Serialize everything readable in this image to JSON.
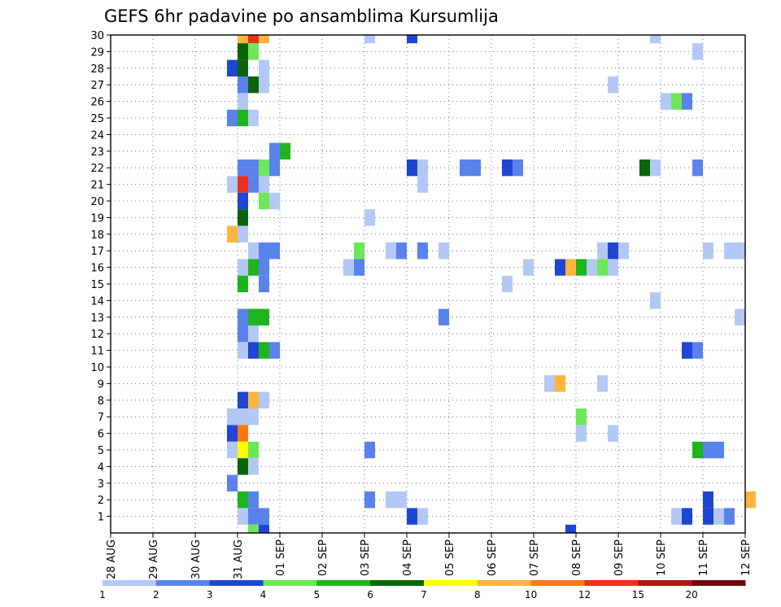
{
  "chart_data": {
    "type": "heatmap",
    "title": "GEFS 6hr padavine po ansamblima Kursumlija",
    "x_tick_labels": [
      "28 AUG",
      "29 AUG",
      "30 AUG",
      "31 AUG",
      "01 SEP",
      "02 SEP",
      "03 SEP",
      "04 SEP",
      "05 SEP",
      "06 SEP",
      "07 SEP",
      "08 SEP",
      "09 SEP",
      "10 SEP",
      "11 SEP",
      "12 SEP"
    ],
    "y_tick_labels": [
      "1",
      "2",
      "3",
      "4",
      "5",
      "6",
      "7",
      "8",
      "9",
      "10",
      "11",
      "12",
      "13",
      "14",
      "15",
      "16",
      "17",
      "18",
      "19",
      "20",
      "21",
      "22",
      "23",
      "24",
      "25",
      "26",
      "27",
      "28",
      "29",
      "30"
    ],
    "x_range_days": [
      0,
      15
    ],
    "y_range": [
      0,
      30
    ],
    "grid": true,
    "legend": {
      "position": "bottom",
      "boundaries": [
        "1",
        "2",
        "3",
        "4",
        "5",
        "6",
        "7",
        "8",
        "10",
        "12",
        "15",
        "20"
      ],
      "colors": [
        "#b4c8f5",
        "#5a82eb",
        "#1e46d2",
        "#6ee65a",
        "#1eb41e",
        "#0a640a",
        "#ffff00",
        "#ffb43c",
        "#ff7814",
        "#e6321e",
        "#b41414",
        "#6e0a0a"
      ]
    },
    "cells_note": "x = days since 28 AUG 00Z, y = ensemble member, c = color class index (0..11)",
    "cells": [
      {
        "x": 3.0,
        "y": 30,
        "c": 7
      },
      {
        "x": 3.25,
        "y": 30,
        "c": 9
      },
      {
        "x": 3.5,
        "y": 30,
        "c": 7
      },
      {
        "x": 6.0,
        "y": 30,
        "c": 0
      },
      {
        "x": 7.0,
        "y": 30,
        "c": 2
      },
      {
        "x": 12.75,
        "y": 30,
        "c": 0
      },
      {
        "x": 3.0,
        "y": 29,
        "c": 5
      },
      {
        "x": 3.25,
        "y": 29,
        "c": 3
      },
      {
        "x": 13.75,
        "y": 29,
        "c": 0
      },
      {
        "x": 2.75,
        "y": 28,
        "c": 2
      },
      {
        "x": 3.0,
        "y": 28,
        "c": 5
      },
      {
        "x": 3.5,
        "y": 28,
        "c": 0
      },
      {
        "x": 3.0,
        "y": 27,
        "c": 1
      },
      {
        "x": 3.25,
        "y": 27,
        "c": 5
      },
      {
        "x": 3.5,
        "y": 27,
        "c": 0
      },
      {
        "x": 11.75,
        "y": 27,
        "c": 0
      },
      {
        "x": 3.0,
        "y": 26,
        "c": 0
      },
      {
        "x": 13.0,
        "y": 26,
        "c": 0
      },
      {
        "x": 13.25,
        "y": 26,
        "c": 3
      },
      {
        "x": 13.5,
        "y": 26,
        "c": 1
      },
      {
        "x": 2.75,
        "y": 25,
        "c": 1
      },
      {
        "x": 3.0,
        "y": 25,
        "c": 4
      },
      {
        "x": 3.25,
        "y": 25,
        "c": 0
      },
      {
        "x": 3.75,
        "y": 23,
        "c": 1
      },
      {
        "x": 4.0,
        "y": 23,
        "c": 4
      },
      {
        "x": 3.0,
        "y": 22,
        "c": 1
      },
      {
        "x": 3.25,
        "y": 22,
        "c": 1
      },
      {
        "x": 3.5,
        "y": 22,
        "c": 3
      },
      {
        "x": 3.75,
        "y": 22,
        "c": 1
      },
      {
        "x": 7.0,
        "y": 22,
        "c": 2
      },
      {
        "x": 7.25,
        "y": 22,
        "c": 0
      },
      {
        "x": 8.25,
        "y": 22,
        "c": 1
      },
      {
        "x": 8.5,
        "y": 22,
        "c": 1
      },
      {
        "x": 9.25,
        "y": 22,
        "c": 2
      },
      {
        "x": 9.5,
        "y": 22,
        "c": 1
      },
      {
        "x": 12.5,
        "y": 22,
        "c": 5
      },
      {
        "x": 12.75,
        "y": 22,
        "c": 0
      },
      {
        "x": 13.75,
        "y": 22,
        "c": 1
      },
      {
        "x": 2.75,
        "y": 21,
        "c": 0
      },
      {
        "x": 3.0,
        "y": 21,
        "c": 9
      },
      {
        "x": 3.25,
        "y": 21,
        "c": 1
      },
      {
        "x": 3.5,
        "y": 21,
        "c": 0
      },
      {
        "x": 7.25,
        "y": 21,
        "c": 0
      },
      {
        "x": 3.0,
        "y": 20,
        "c": 2
      },
      {
        "x": 3.5,
        "y": 20,
        "c": 3
      },
      {
        "x": 3.75,
        "y": 20,
        "c": 0
      },
      {
        "x": 3.0,
        "y": 19,
        "c": 5
      },
      {
        "x": 6.0,
        "y": 19,
        "c": 0
      },
      {
        "x": 2.75,
        "y": 18,
        "c": 7
      },
      {
        "x": 3.0,
        "y": 18,
        "c": 0
      },
      {
        "x": 3.25,
        "y": 17,
        "c": 0
      },
      {
        "x": 3.5,
        "y": 17,
        "c": 1
      },
      {
        "x": 3.75,
        "y": 17,
        "c": 1
      },
      {
        "x": 5.75,
        "y": 17,
        "c": 3
      },
      {
        "x": 6.5,
        "y": 17,
        "c": 0
      },
      {
        "x": 6.75,
        "y": 17,
        "c": 1
      },
      {
        "x": 7.25,
        "y": 17,
        "c": 1
      },
      {
        "x": 7.75,
        "y": 17,
        "c": 0
      },
      {
        "x": 11.5,
        "y": 17,
        "c": 0
      },
      {
        "x": 11.75,
        "y": 17,
        "c": 2
      },
      {
        "x": 12.0,
        "y": 17,
        "c": 0
      },
      {
        "x": 14.0,
        "y": 17,
        "c": 0
      },
      {
        "x": 14.5,
        "y": 17,
        "c": 0
      },
      {
        "x": 14.75,
        "y": 17,
        "c": 0
      },
      {
        "x": 3.0,
        "y": 16,
        "c": 0
      },
      {
        "x": 3.25,
        "y": 16,
        "c": 4
      },
      {
        "x": 3.5,
        "y": 16,
        "c": 1
      },
      {
        "x": 5.5,
        "y": 16,
        "c": 0
      },
      {
        "x": 5.75,
        "y": 16,
        "c": 1
      },
      {
        "x": 9.75,
        "y": 16,
        "c": 0
      },
      {
        "x": 10.5,
        "y": 16,
        "c": 2
      },
      {
        "x": 10.75,
        "y": 16,
        "c": 7
      },
      {
        "x": 11.0,
        "y": 16,
        "c": 4
      },
      {
        "x": 11.25,
        "y": 16,
        "c": 0
      },
      {
        "x": 11.5,
        "y": 16,
        "c": 3
      },
      {
        "x": 11.75,
        "y": 16,
        "c": 0
      },
      {
        "x": 3.0,
        "y": 15,
        "c": 4
      },
      {
        "x": 3.5,
        "y": 15,
        "c": 1
      },
      {
        "x": 9.25,
        "y": 15,
        "c": 0
      },
      {
        "x": 12.75,
        "y": 14,
        "c": 0
      },
      {
        "x": 3.0,
        "y": 13,
        "c": 1
      },
      {
        "x": 3.25,
        "y": 13,
        "c": 4
      },
      {
        "x": 3.5,
        "y": 13,
        "c": 4
      },
      {
        "x": 7.75,
        "y": 13,
        "c": 1
      },
      {
        "x": 14.75,
        "y": 13,
        "c": 0
      },
      {
        "x": 3.0,
        "y": 12,
        "c": 1
      },
      {
        "x": 3.25,
        "y": 12,
        "c": 0
      },
      {
        "x": 3.0,
        "y": 11,
        "c": 0
      },
      {
        "x": 3.25,
        "y": 11,
        "c": 2
      },
      {
        "x": 3.5,
        "y": 11,
        "c": 4
      },
      {
        "x": 3.75,
        "y": 11,
        "c": 1
      },
      {
        "x": 13.5,
        "y": 11,
        "c": 2
      },
      {
        "x": 13.75,
        "y": 11,
        "c": 1
      },
      {
        "x": 10.25,
        "y": 9,
        "c": 0
      },
      {
        "x": 10.5,
        "y": 9,
        "c": 7
      },
      {
        "x": 11.5,
        "y": 9,
        "c": 0
      },
      {
        "x": 3.0,
        "y": 8,
        "c": 2
      },
      {
        "x": 3.25,
        "y": 8,
        "c": 7
      },
      {
        "x": 3.5,
        "y": 8,
        "c": 0
      },
      {
        "x": 2.75,
        "y": 7,
        "c": 0
      },
      {
        "x": 3.0,
        "y": 7,
        "c": 0
      },
      {
        "x": 3.25,
        "y": 7,
        "c": 0
      },
      {
        "x": 11.0,
        "y": 7,
        "c": 3
      },
      {
        "x": 2.75,
        "y": 6,
        "c": 2
      },
      {
        "x": 3.0,
        "y": 6,
        "c": 8
      },
      {
        "x": 11.0,
        "y": 6,
        "c": 0
      },
      {
        "x": 11.75,
        "y": 6,
        "c": 0
      },
      {
        "x": 2.75,
        "y": 5,
        "c": 0
      },
      {
        "x": 3.0,
        "y": 5,
        "c": 6
      },
      {
        "x": 3.25,
        "y": 5,
        "c": 3
      },
      {
        "x": 6.0,
        "y": 5,
        "c": 1
      },
      {
        "x": 13.75,
        "y": 5,
        "c": 4
      },
      {
        "x": 14.0,
        "y": 5,
        "c": 1
      },
      {
        "x": 14.25,
        "y": 5,
        "c": 1
      },
      {
        "x": 3.0,
        "y": 4,
        "c": 5
      },
      {
        "x": 3.25,
        "y": 4,
        "c": 0
      },
      {
        "x": 2.75,
        "y": 3,
        "c": 1
      },
      {
        "x": 3.0,
        "y": 2,
        "c": 4
      },
      {
        "x": 3.25,
        "y": 2,
        "c": 1
      },
      {
        "x": 6.0,
        "y": 2,
        "c": 1
      },
      {
        "x": 6.5,
        "y": 2,
        "c": 0
      },
      {
        "x": 6.75,
        "y": 2,
        "c": 0
      },
      {
        "x": 14.0,
        "y": 2,
        "c": 2
      },
      {
        "x": 15.0,
        "y": 2,
        "c": 7
      },
      {
        "x": 3.0,
        "y": 1,
        "c": 0
      },
      {
        "x": 3.25,
        "y": 1,
        "c": 1
      },
      {
        "x": 3.5,
        "y": 1,
        "c": 1
      },
      {
        "x": 7.0,
        "y": 1,
        "c": 2
      },
      {
        "x": 7.25,
        "y": 1,
        "c": 0
      },
      {
        "x": 13.25,
        "y": 1,
        "c": 0
      },
      {
        "x": 13.5,
        "y": 1,
        "c": 2
      },
      {
        "x": 14.0,
        "y": 1,
        "c": 2
      },
      {
        "x": 14.25,
        "y": 1,
        "c": 0
      },
      {
        "x": 14.5,
        "y": 1,
        "c": 1
      },
      {
        "x": 3.25,
        "y": 0,
        "c": 3
      },
      {
        "x": 3.5,
        "y": 0,
        "c": 2
      },
      {
        "x": 10.75,
        "y": 0,
        "c": 2
      }
    ]
  }
}
